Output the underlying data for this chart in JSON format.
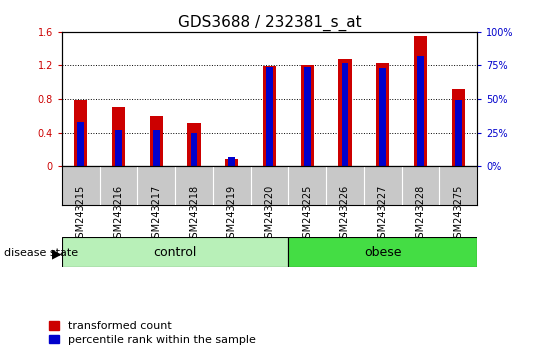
{
  "title": "GDS3688 / 232381_s_at",
  "samples": [
    "GSM243215",
    "GSM243216",
    "GSM243217",
    "GSM243218",
    "GSM243219",
    "GSM243220",
    "GSM243225",
    "GSM243226",
    "GSM243227",
    "GSM243228",
    "GSM243275"
  ],
  "transformed_count": [
    0.79,
    0.7,
    0.6,
    0.52,
    0.09,
    1.19,
    1.2,
    1.28,
    1.23,
    1.55,
    0.92
  ],
  "percentile_rank": [
    0.33,
    0.27,
    0.27,
    0.25,
    0.065,
    0.74,
    0.74,
    0.77,
    0.73,
    0.82,
    0.49
  ],
  "groups": [
    {
      "label": "control",
      "start": 0,
      "end": 5,
      "color": "#B8F0B8"
    },
    {
      "label": "obese",
      "start": 6,
      "end": 10,
      "color": "#44DD44"
    }
  ],
  "ylim_left": [
    0,
    1.6
  ],
  "ylim_right": [
    0,
    1.0
  ],
  "yticks_left": [
    0,
    0.4,
    0.8,
    1.2,
    1.6
  ],
  "ytick_labels_left": [
    "0",
    "0.4",
    "0.8",
    "1.2",
    "1.6"
  ],
  "yticks_right": [
    0,
    0.25,
    0.5,
    0.75,
    1.0
  ],
  "ytick_labels_right": [
    "0%",
    "25%",
    "50%",
    "75%",
    "100%"
  ],
  "bar_color_red": "#CC0000",
  "bar_color_blue": "#0000CC",
  "red_bar_width": 0.35,
  "blue_bar_width": 0.18,
  "title_fontsize": 11,
  "tick_fontsize": 7,
  "label_fontsize": 8,
  "group_label_fontsize": 9,
  "legend_fontsize": 8,
  "axis_color_left": "#CC0000",
  "axis_color_right": "#0000CC",
  "sample_bg_color": "#C8C8C8",
  "disease_state_label": "disease state",
  "legend_items": [
    "transformed count",
    "percentile rank within the sample"
  ]
}
